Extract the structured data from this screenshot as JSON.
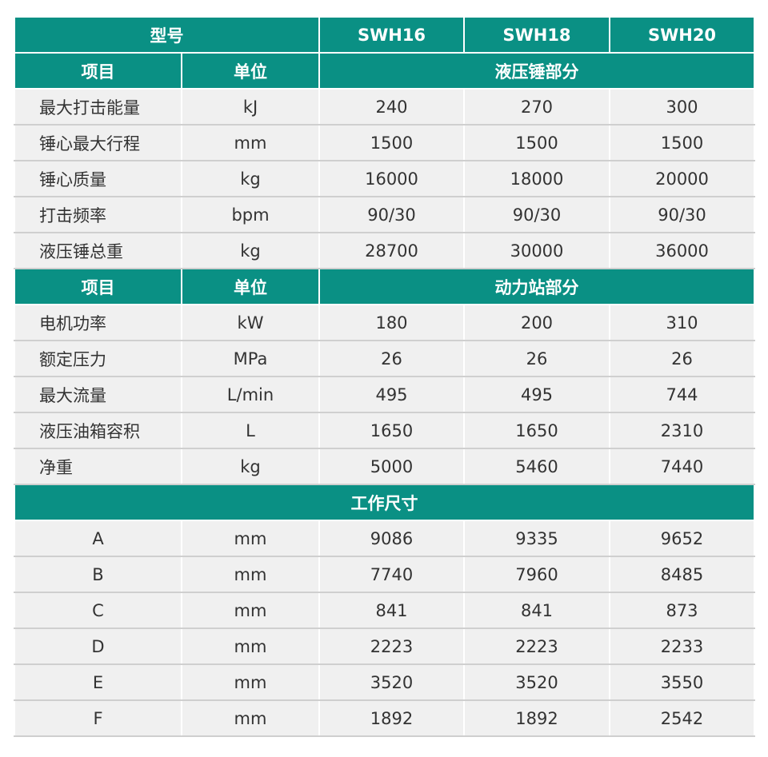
{
  "colors": {
    "header_bg": "#0a9084",
    "cell_bg": "#f0f0f0",
    "text": "#333333"
  },
  "model_header": {
    "label": "型号",
    "models": [
      "SWH16",
      "SWH18",
      "SWH20"
    ]
  },
  "sections": [
    {
      "item_label": "项目",
      "unit_label": "单位",
      "title": "液压锤部分",
      "rows": [
        {
          "name": "最大打击能量",
          "unit": "kJ",
          "values": [
            "240",
            "270",
            "300"
          ]
        },
        {
          "name": "锤心最大行程",
          "unit": "mm",
          "values": [
            "1500",
            "1500",
            "1500"
          ]
        },
        {
          "name": "锤心质量",
          "unit": "kg",
          "values": [
            "16000",
            "18000",
            "20000"
          ]
        },
        {
          "name": "打击频率",
          "unit": "bpm",
          "values": [
            "90/30",
            "90/30",
            "90/30"
          ]
        },
        {
          "name": "液压锤总重",
          "unit": "kg",
          "values": [
            "28700",
            "30000",
            "36000"
          ]
        }
      ]
    },
    {
      "item_label": "项目",
      "unit_label": "单位",
      "title": "动力站部分",
      "rows": [
        {
          "name": "电机功率",
          "unit": "kW",
          "values": [
            "180",
            "200",
            "310"
          ]
        },
        {
          "name": "额定压力",
          "unit": "MPa",
          "values": [
            "26",
            "26",
            "26"
          ]
        },
        {
          "name": "最大流量",
          "unit": "L/min",
          "values": [
            "495",
            "495",
            "744"
          ]
        },
        {
          "name": "液压油箱容积",
          "unit": "L",
          "values": [
            "1650",
            "1650",
            "2310"
          ]
        },
        {
          "name": "净重",
          "unit": "kg",
          "values": [
            "5000",
            "5460",
            "7440"
          ]
        }
      ]
    }
  ],
  "dimensions": {
    "title": "工作尺寸",
    "rows": [
      {
        "name": "A",
        "unit": "mm",
        "values": [
          "9086",
          "9335",
          "9652"
        ]
      },
      {
        "name": "B",
        "unit": "mm",
        "values": [
          "7740",
          "7960",
          "8485"
        ]
      },
      {
        "name": "C",
        "unit": "mm",
        "values": [
          "841",
          "841",
          "873"
        ]
      },
      {
        "name": "D",
        "unit": "mm",
        "values": [
          "2223",
          "2223",
          "2233"
        ]
      },
      {
        "name": "E",
        "unit": "mm",
        "values": [
          "3520",
          "3520",
          "3550"
        ]
      },
      {
        "name": "F",
        "unit": "mm",
        "values": [
          "1892",
          "1892",
          "2542"
        ]
      }
    ]
  }
}
